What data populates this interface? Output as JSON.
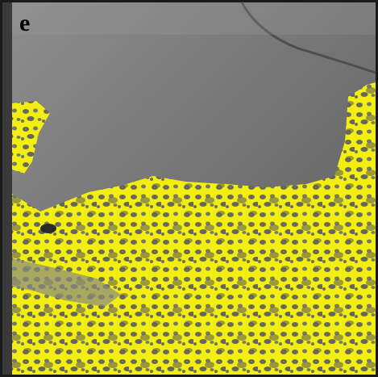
{
  "panel_label": "e"
}
